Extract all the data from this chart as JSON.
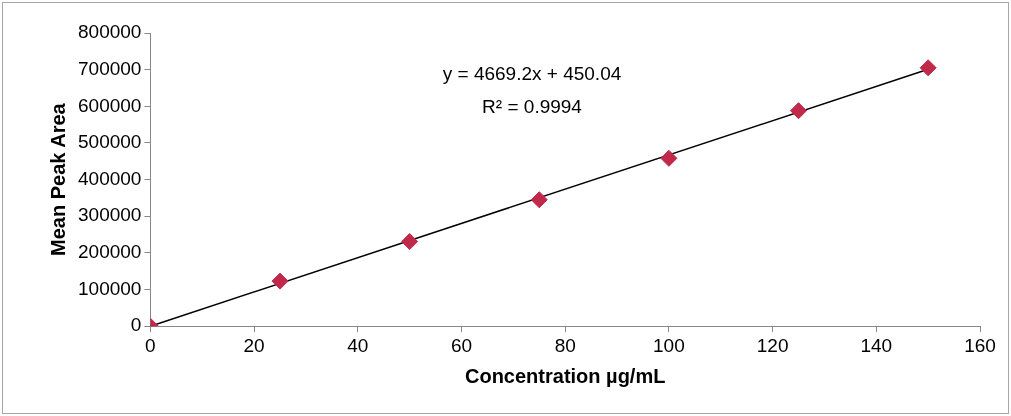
{
  "chart_data": {
    "type": "scatter",
    "xlabel": "Concentration µg/mL",
    "ylabel": "Mean Peak Area",
    "xlim": [
      0,
      160
    ],
    "xticks": [
      0,
      20,
      40,
      60,
      80,
      100,
      120,
      140,
      160
    ],
    "ylim": [
      0,
      800000
    ],
    "yticks": [
      0,
      100000,
      200000,
      300000,
      400000,
      500000,
      600000,
      700000,
      800000
    ],
    "grid": false,
    "legend": false,
    "annotations": [
      "y = 4669.2x + 450.04",
      "R² = 0.9994"
    ],
    "series": [
      {
        "marker": "diamond",
        "color": "#c0294a",
        "x": [
          0,
          25,
          50,
          75,
          100,
          125,
          150
        ],
        "values": [
          0,
          123000,
          231000,
          345000,
          458000,
          588000,
          705000
        ]
      },
      {
        "type": "line",
        "marker": "none",
        "color": "#000000",
        "x": [
          0,
          150
        ],
        "values": [
          0,
          701000
        ]
      }
    ]
  }
}
